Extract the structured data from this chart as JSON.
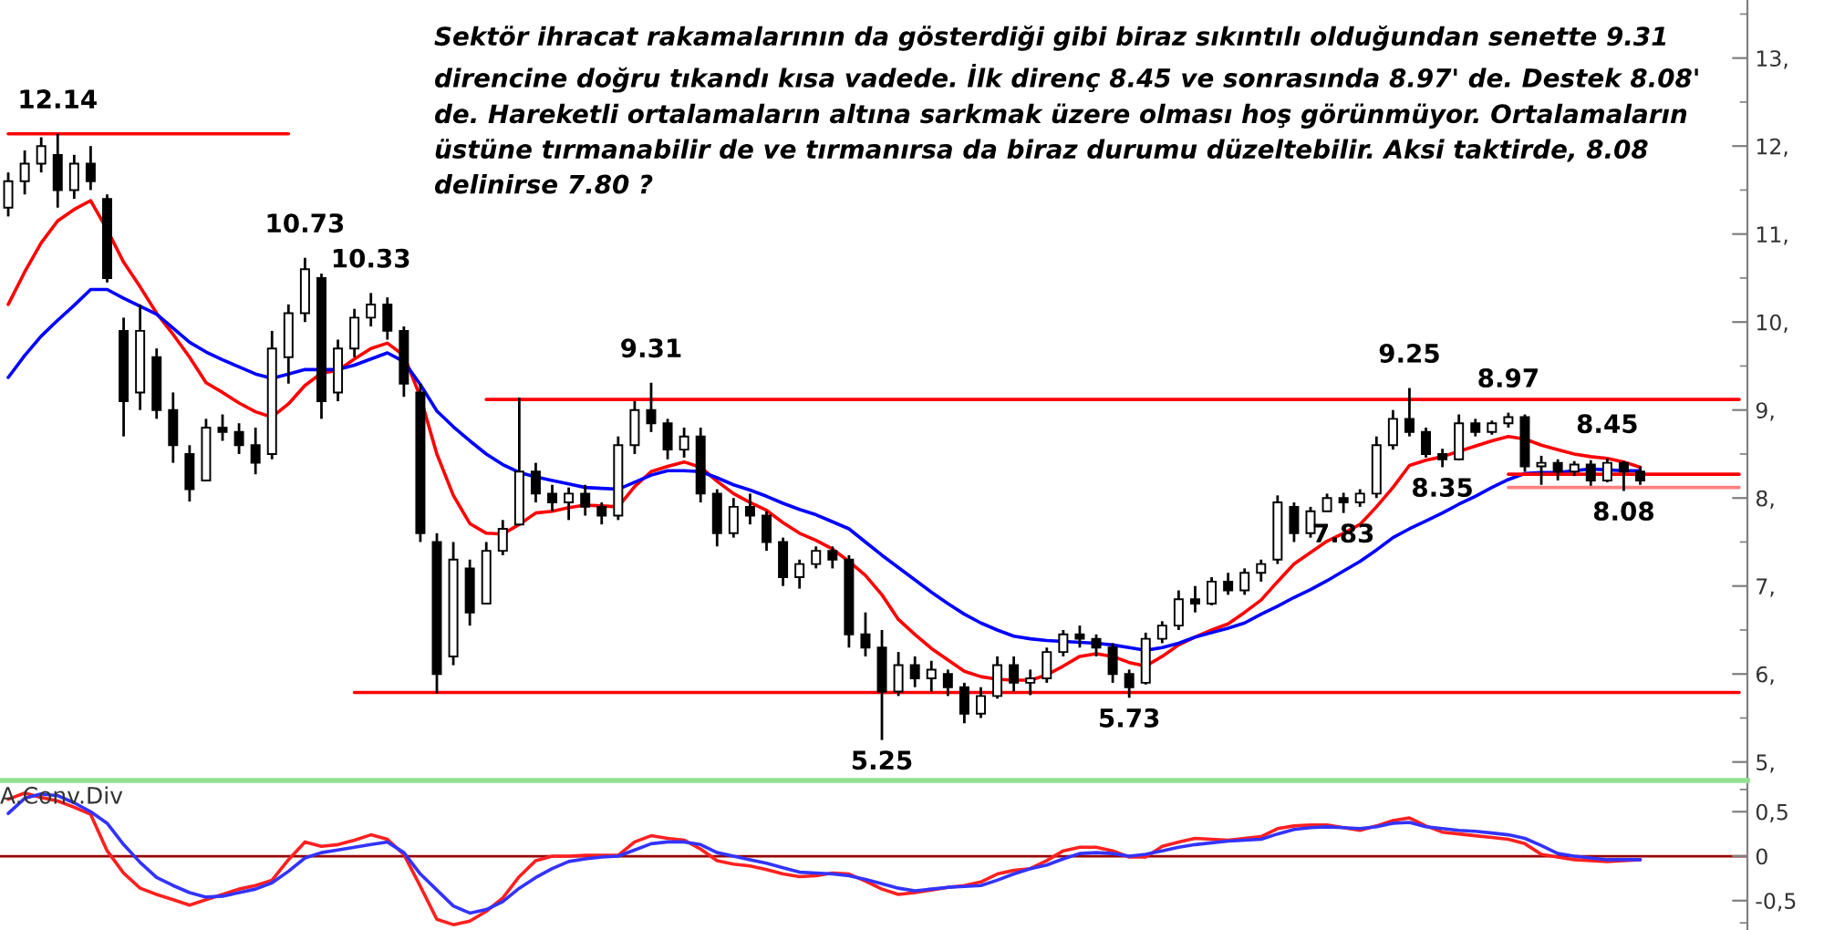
{
  "chart_data": [
    {
      "type": "candlestick",
      "categories": [
        null,
        null,
        null,
        null,
        null,
        null,
        null,
        null,
        null,
        null,
        null,
        null,
        null,
        null,
        null,
        null,
        null,
        null,
        null,
        null,
        null,
        null,
        null,
        null,
        null,
        null,
        null,
        null,
        null,
        null,
        null,
        null,
        null,
        null,
        null,
        null,
        null,
        null,
        null,
        null,
        null,
        null,
        null,
        null,
        null,
        null,
        null,
        null,
        null,
        null,
        null,
        null,
        null,
        null,
        null,
        null,
        null,
        null,
        null,
        null,
        null,
        null,
        null,
        null,
        null,
        null,
        null,
        null,
        null,
        null,
        null,
        null,
        null,
        null,
        null,
        null,
        null,
        null,
        null,
        null,
        null,
        null,
        null,
        null,
        null,
        null,
        null,
        null,
        null,
        null,
        null,
        null,
        null,
        null,
        null,
        null,
        null,
        null,
        null,
        null,
        null,
        null,
        null,
        null,
        null,
        null
      ],
      "ohlc": [
        [
          11.3,
          11.7,
          11.2,
          11.6
        ],
        [
          11.6,
          11.95,
          11.45,
          11.8
        ],
        [
          11.8,
          12.1,
          11.7,
          12.0
        ],
        [
          11.9,
          12.14,
          11.3,
          11.5
        ],
        [
          11.5,
          11.9,
          11.4,
          11.8
        ],
        [
          11.8,
          12.0,
          11.5,
          11.6
        ],
        [
          11.4,
          11.45,
          10.45,
          10.5
        ],
        [
          9.9,
          10.05,
          8.7,
          9.1
        ],
        [
          9.2,
          10.2,
          9.0,
          9.9
        ],
        [
          9.6,
          9.7,
          8.9,
          9.0
        ],
        [
          9.0,
          9.2,
          8.4,
          8.6
        ],
        [
          8.5,
          8.6,
          7.96,
          8.1
        ],
        [
          8.2,
          8.9,
          8.2,
          8.8
        ],
        [
          8.8,
          8.95,
          8.65,
          8.75
        ],
        [
          8.75,
          8.85,
          8.5,
          8.6
        ],
        [
          8.6,
          8.8,
          8.27,
          8.4
        ],
        [
          8.5,
          9.9,
          8.44,
          9.7
        ],
        [
          9.6,
          10.2,
          9.3,
          10.1
        ],
        [
          10.1,
          10.73,
          10.0,
          10.6
        ],
        [
          10.5,
          10.55,
          8.9,
          9.1
        ],
        [
          9.2,
          9.8,
          9.1,
          9.7
        ],
        [
          9.7,
          10.15,
          9.6,
          10.05
        ],
        [
          10.05,
          10.33,
          9.95,
          10.2
        ],
        [
          10.2,
          10.28,
          9.8,
          9.9
        ],
        [
          9.9,
          9.95,
          9.15,
          9.3
        ],
        [
          9.2,
          9.3,
          7.5,
          7.6
        ],
        [
          7.5,
          7.6,
          5.78,
          6.0
        ],
        [
          6.2,
          7.5,
          6.1,
          7.3
        ],
        [
          7.2,
          7.3,
          6.55,
          6.7
        ],
        [
          6.8,
          7.5,
          6.8,
          7.4
        ],
        [
          7.4,
          7.75,
          7.35,
          7.65
        ],
        [
          7.7,
          9.14,
          7.7,
          8.3
        ],
        [
          8.3,
          8.4,
          7.95,
          8.05
        ],
        [
          8.05,
          8.15,
          7.85,
          7.95
        ],
        [
          7.95,
          8.12,
          7.75,
          8.05
        ],
        [
          8.05,
          8.15,
          7.8,
          7.9
        ],
        [
          7.9,
          7.95,
          7.7,
          7.8
        ],
        [
          7.8,
          8.7,
          7.75,
          8.6
        ],
        [
          8.6,
          9.1,
          8.5,
          9.0
        ],
        [
          9.0,
          9.31,
          8.75,
          8.85
        ],
        [
          8.85,
          8.9,
          8.44,
          8.55
        ],
        [
          8.55,
          8.8,
          8.46,
          8.7
        ],
        [
          8.7,
          8.8,
          7.95,
          8.05
        ],
        [
          8.05,
          8.1,
          7.45,
          7.6
        ],
        [
          7.6,
          8.0,
          7.55,
          7.9
        ],
        [
          7.9,
          8.05,
          7.7,
          7.8
        ],
        [
          7.8,
          7.85,
          7.4,
          7.5
        ],
        [
          7.5,
          7.55,
          7.0,
          7.1
        ],
        [
          7.1,
          7.3,
          6.97,
          7.25
        ],
        [
          7.25,
          7.45,
          7.2,
          7.4
        ],
        [
          7.4,
          7.45,
          7.2,
          7.3
        ],
        [
          7.3,
          7.35,
          6.3,
          6.45
        ],
        [
          6.45,
          6.7,
          6.2,
          6.3
        ],
        [
          6.3,
          6.5,
          5.25,
          5.8
        ],
        [
          5.8,
          6.25,
          5.75,
          6.1
        ],
        [
          6.1,
          6.2,
          5.85,
          5.95
        ],
        [
          5.95,
          6.15,
          5.8,
          6.05
        ],
        [
          6.0,
          6.05,
          5.75,
          5.85
        ],
        [
          5.85,
          5.9,
          5.44,
          5.55
        ],
        [
          5.55,
          5.85,
          5.5,
          5.75
        ],
        [
          5.75,
          6.2,
          5.72,
          6.1
        ],
        [
          6.1,
          6.2,
          5.8,
          5.9
        ],
        [
          5.9,
          6.05,
          5.76,
          5.95
        ],
        [
          5.95,
          6.3,
          5.9,
          6.25
        ],
        [
          6.25,
          6.5,
          6.2,
          6.45
        ],
        [
          6.45,
          6.55,
          6.3,
          6.4
        ],
        [
          6.4,
          6.45,
          6.2,
          6.3
        ],
        [
          6.3,
          6.35,
          5.9,
          6.0
        ],
        [
          6.0,
          6.05,
          5.73,
          5.85
        ],
        [
          5.9,
          6.47,
          5.88,
          6.4
        ],
        [
          6.4,
          6.6,
          6.35,
          6.55
        ],
        [
          6.55,
          6.95,
          6.5,
          6.85
        ],
        [
          6.85,
          7.0,
          6.7,
          6.8
        ],
        [
          6.8,
          7.1,
          6.78,
          7.05
        ],
        [
          7.05,
          7.15,
          6.9,
          6.95
        ],
        [
          6.95,
          7.2,
          6.9,
          7.15
        ],
        [
          7.15,
          7.3,
          7.05,
          7.25
        ],
        [
          7.3,
          8.03,
          7.25,
          7.95
        ],
        [
          7.9,
          7.95,
          7.5,
          7.6
        ],
        [
          7.6,
          7.9,
          7.55,
          7.85
        ],
        [
          7.85,
          8.05,
          7.85,
          8.0
        ],
        [
          8.0,
          8.06,
          7.83,
          7.95
        ],
        [
          7.95,
          8.1,
          7.9,
          8.05
        ],
        [
          8.05,
          8.7,
          8.0,
          8.6
        ],
        [
          8.6,
          9.0,
          8.55,
          8.9
        ],
        [
          8.9,
          9.25,
          8.7,
          8.75
        ],
        [
          8.75,
          8.8,
          8.46,
          8.5
        ],
        [
          8.5,
          8.56,
          8.35,
          8.44
        ],
        [
          8.44,
          8.95,
          8.43,
          8.85
        ],
        [
          8.85,
          8.9,
          8.7,
          8.75
        ],
        [
          8.75,
          8.88,
          8.72,
          8.85
        ],
        [
          8.85,
          8.97,
          8.8,
          8.92
        ],
        [
          8.92,
          8.95,
          8.3,
          8.36
        ],
        [
          8.36,
          8.48,
          8.15,
          8.4
        ],
        [
          8.4,
          8.44,
          8.2,
          8.3
        ],
        [
          8.3,
          8.42,
          8.25,
          8.38
        ],
        [
          8.38,
          8.43,
          8.14,
          8.2
        ],
        [
          8.2,
          8.45,
          8.18,
          8.4
        ],
        [
          8.4,
          8.42,
          8.08,
          8.3
        ],
        [
          8.3,
          8.36,
          8.15,
          8.2
        ],
        null,
        null,
        null,
        null,
        null,
        null
      ],
      "series": [
        {
          "type": "line",
          "color": "#ff0000",
          "values": [
            10.2,
            10.57,
            10.9,
            11.15,
            11.28,
            11.38,
            11.05,
            10.68,
            10.4,
            10.1,
            9.86,
            9.6,
            9.31,
            9.2,
            9.08,
            8.98,
            8.92,
            9.07,
            9.28,
            9.42,
            9.45,
            9.58,
            9.7,
            9.76,
            9.62,
            9.15,
            8.5,
            8.03,
            7.71,
            7.6,
            7.59,
            7.7,
            7.83,
            7.85,
            7.89,
            7.92,
            7.91,
            7.9,
            8.13,
            8.3,
            8.36,
            8.41,
            8.35,
            8.19,
            8.05,
            7.95,
            7.86,
            7.72,
            7.6,
            7.52,
            7.42,
            7.28,
            7.12,
            6.9,
            6.62,
            6.45,
            6.29,
            6.16,
            6.03,
            5.97,
            5.94,
            5.93,
            5.93,
            5.99,
            6.09,
            6.2,
            6.23,
            6.2,
            6.13,
            6.09,
            6.2,
            6.33,
            6.42,
            6.5,
            6.57,
            6.7,
            6.84,
            7.05,
            7.25,
            7.38,
            7.51,
            7.6,
            7.7,
            7.9,
            8.12,
            8.37,
            8.43,
            8.47,
            8.53,
            8.59,
            8.65,
            8.7,
            8.67,
            8.6,
            8.55,
            8.5,
            8.47,
            8.45,
            8.41,
            8.35,
            null,
            null,
            null,
            null,
            null,
            null
          ]
        },
        {
          "type": "line",
          "color": "#0000ff",
          "values": [
            9.37,
            9.62,
            9.84,
            10.02,
            10.19,
            10.37,
            10.37,
            10.27,
            10.18,
            10.09,
            9.93,
            9.77,
            9.66,
            9.57,
            9.49,
            9.41,
            9.36,
            9.41,
            9.46,
            9.46,
            9.46,
            9.51,
            9.58,
            9.65,
            9.55,
            9.29,
            8.99,
            8.81,
            8.65,
            8.5,
            8.38,
            8.29,
            8.24,
            8.2,
            8.16,
            8.12,
            8.11,
            8.1,
            8.18,
            8.26,
            8.31,
            8.31,
            8.3,
            8.23,
            8.15,
            8.09,
            8.02,
            7.94,
            7.87,
            7.81,
            7.73,
            7.65,
            7.5,
            7.35,
            7.21,
            7.07,
            6.93,
            6.8,
            6.68,
            6.58,
            6.5,
            6.43,
            6.4,
            6.38,
            6.37,
            6.36,
            6.35,
            6.33,
            6.3,
            6.27,
            6.3,
            6.35,
            6.42,
            6.47,
            6.52,
            6.58,
            6.68,
            6.77,
            6.87,
            6.96,
            7.06,
            7.17,
            7.28,
            7.41,
            7.55,
            7.65,
            7.74,
            7.83,
            7.93,
            8.02,
            8.12,
            8.21,
            8.28,
            8.29,
            8.29,
            8.31,
            8.33,
            8.32,
            8.31,
            8.31,
            null,
            null,
            null,
            null,
            null,
            null
          ]
        },
        {
          "type": "line",
          "color": "#ff0000",
          "values": [
            12.14,
            12.14,
            12.14,
            12.14,
            12.14,
            12.14,
            12.14,
            12.14,
            12.14,
            12.14,
            12.14,
            12.14,
            12.14,
            12.14,
            12.14,
            12.14,
            12.14,
            12.14,
            null,
            null,
            null,
            null,
            null,
            null,
            null,
            null,
            null,
            null,
            null,
            null,
            null,
            null,
            null,
            null,
            null,
            null,
            null,
            null,
            null,
            null,
            null,
            null,
            null,
            null,
            null,
            null,
            null,
            null,
            null,
            null,
            null,
            null,
            null,
            null,
            null,
            null,
            null,
            null,
            null,
            null,
            null,
            null,
            null,
            null,
            null,
            null,
            null,
            null,
            null,
            null,
            null,
            null,
            null,
            null,
            null,
            null,
            null,
            null,
            null,
            null,
            null,
            null,
            null,
            null,
            null,
            null,
            null,
            null,
            null,
            null,
            null,
            null,
            null,
            null,
            null,
            null,
            null,
            null,
            null,
            null,
            null,
            null,
            null,
            null,
            null,
            null
          ]
        },
        {
          "type": "line",
          "color": "#ff0000",
          "values": [
            null,
            null,
            null,
            null,
            null,
            null,
            null,
            null,
            null,
            null,
            null,
            null,
            null,
            null,
            null,
            null,
            null,
            null,
            null,
            null,
            null,
            null,
            null,
            null,
            null,
            null,
            null,
            null,
            null,
            9.12,
            9.12,
            9.12,
            9.12,
            9.12,
            9.12,
            9.12,
            9.12,
            9.12,
            9.12,
            9.12,
            9.12,
            9.12,
            9.12,
            9.12,
            9.12,
            9.12,
            9.12,
            9.12,
            9.12,
            9.12,
            9.12,
            9.12,
            9.12,
            9.12,
            9.12,
            9.12,
            9.12,
            9.12,
            9.12,
            9.12,
            9.12,
            9.12,
            9.12,
            9.12,
            9.12,
            9.12,
            9.12,
            9.12,
            9.12,
            9.12,
            9.12,
            9.12,
            9.12,
            9.12,
            9.12,
            9.12,
            9.12,
            9.12,
            9.12,
            9.12,
            9.12,
            9.12,
            9.12,
            9.12,
            9.12,
            9.12,
            9.12,
            9.12,
            9.12,
            9.12,
            9.12,
            9.12,
            9.12,
            9.12,
            9.12,
            9.12,
            9.12,
            9.12,
            9.12,
            9.12,
            9.12,
            9.12,
            9.12,
            9.12,
            9.12,
            9.12
          ]
        },
        {
          "type": "line",
          "color": "#ff0000",
          "values": [
            null,
            null,
            null,
            null,
            null,
            null,
            null,
            null,
            null,
            null,
            null,
            null,
            null,
            null,
            null,
            null,
            null,
            null,
            null,
            null,
            null,
            5.79,
            5.79,
            5.79,
            5.79,
            5.79,
            5.79,
            5.79,
            5.79,
            5.79,
            5.79,
            5.79,
            5.79,
            5.79,
            5.79,
            5.79,
            5.79,
            5.79,
            5.79,
            5.79,
            5.79,
            5.79,
            5.79,
            5.79,
            5.79,
            5.79,
            5.79,
            5.79,
            5.79,
            5.79,
            5.79,
            5.79,
            5.79,
            5.79,
            5.79,
            5.79,
            5.79,
            5.79,
            5.79,
            5.79,
            5.79,
            5.79,
            5.79,
            5.79,
            5.79,
            5.79,
            5.79,
            5.79,
            5.79,
            5.79,
            5.79,
            5.79,
            5.79,
            5.79,
            5.79,
            5.79,
            5.79,
            5.79,
            5.79,
            5.79,
            5.79,
            5.79,
            5.79,
            5.79,
            5.79,
            5.79,
            5.79,
            5.79,
            5.79,
            5.79,
            5.79,
            5.79,
            5.79,
            5.79,
            5.79,
            5.79,
            5.79,
            5.79,
            5.79,
            5.79,
            5.79,
            5.79,
            5.79,
            5.79,
            5.79,
            5.79
          ]
        },
        {
          "type": "line",
          "color": "#ff0000",
          "values": [
            null,
            null,
            null,
            null,
            null,
            null,
            null,
            null,
            null,
            null,
            null,
            null,
            null,
            null,
            null,
            null,
            null,
            null,
            null,
            null,
            null,
            null,
            null,
            null,
            null,
            null,
            null,
            null,
            null,
            null,
            null,
            null,
            null,
            null,
            null,
            null,
            null,
            null,
            null,
            null,
            null,
            null,
            null,
            null,
            null,
            null,
            null,
            null,
            null,
            null,
            null,
            null,
            null,
            null,
            null,
            null,
            null,
            null,
            null,
            null,
            null,
            null,
            null,
            null,
            null,
            null,
            null,
            null,
            null,
            null,
            null,
            null,
            null,
            null,
            null,
            null,
            null,
            null,
            null,
            null,
            null,
            null,
            null,
            null,
            null,
            null,
            null,
            null,
            null,
            null,
            null,
            8.27,
            8.27,
            8.27,
            8.27,
            8.27,
            8.27,
            8.27,
            8.27,
            8.27,
            8.27,
            8.27,
            8.27,
            8.27,
            8.27,
            8.27
          ]
        },
        {
          "type": "line",
          "color": "#ff8080",
          "values": [
            null,
            null,
            null,
            null,
            null,
            null,
            null,
            null,
            null,
            null,
            null,
            null,
            null,
            null,
            null,
            null,
            null,
            null,
            null,
            null,
            null,
            null,
            null,
            null,
            null,
            null,
            null,
            null,
            null,
            null,
            null,
            null,
            null,
            null,
            null,
            null,
            null,
            null,
            null,
            null,
            null,
            null,
            null,
            null,
            null,
            null,
            null,
            null,
            null,
            null,
            null,
            null,
            null,
            null,
            null,
            null,
            null,
            null,
            null,
            null,
            null,
            null,
            null,
            null,
            null,
            null,
            null,
            null,
            null,
            null,
            null,
            null,
            null,
            null,
            null,
            null,
            null,
            null,
            null,
            null,
            null,
            null,
            null,
            null,
            null,
            null,
            null,
            null,
            null,
            null,
            null,
            8.12,
            8.12,
            8.12,
            8.12,
            8.12,
            8.12,
            8.12,
            8.12,
            8.12,
            8.12,
            8.12,
            8.12,
            8.12,
            8.12,
            8.12
          ]
        }
      ],
      "ylim": [
        4.79,
        13.66
      ],
      "yticks": [
        {
          "value": 5,
          "label": "5,"
        },
        {
          "value": 5.5,
          "label": null
        },
        {
          "value": 6,
          "label": "6,"
        },
        {
          "value": 6.5,
          "label": null
        },
        {
          "value": 7,
          "label": "7,"
        },
        {
          "value": 7.5,
          "label": null
        },
        {
          "value": 8,
          "label": "8,"
        },
        {
          "value": 8.5,
          "label": null
        },
        {
          "value": 9,
          "label": "9,"
        },
        {
          "value": 9.5,
          "label": null
        },
        {
          "value": 10,
          "label": "10,"
        },
        {
          "value": 10.5,
          "label": null
        },
        {
          "value": 11,
          "label": "11,"
        },
        {
          "value": 11.5,
          "label": null
        },
        {
          "value": 12,
          "label": "12,"
        },
        {
          "value": 12.5,
          "label": null
        },
        {
          "value": 13,
          "label": "13,"
        },
        {
          "value": 13.5,
          "label": null
        }
      ],
      "tick_labels": "y",
      "annotations": [
        "Sektör ihracat rakamalarının da gösterdiği gibi biraz sıkıntılı olduğundan senette 9.31 direncine doğru tıkandı kısa vadede. İlk direnç 8.45 ve sonrasında 8.97' de. Destek 8.08' de. Hareketli ortalamaların altına sarkmak üzere olması hoş görünmüyor. Ortalamaların üstüne tırmanabilir de ve tırmanırsa da biraz durumu düzeltebilir. Aksi taktirde, 8.08 delinirse 7.80 ?",
        {
          "text": "12.14",
          "y": 12.14
        },
        {
          "text": "10.73",
          "y": 10.73
        },
        {
          "text": "10.33",
          "y": 10.33
        },
        {
          "text": "9.31",
          "y": 9.31
        },
        {
          "text": "5.25",
          "y": 5.25
        },
        {
          "text": "5.73",
          "y": 5.73
        },
        {
          "text": "7.83",
          "y": 7.83
        },
        {
          "text": "9.25",
          "y": 9.25
        },
        {
          "text": "8.35",
          "y": 8.35
        },
        {
          "text": "8.97",
          "y": 8.97
        },
        {
          "text": "8.45",
          "y": 8.45
        },
        {
          "text": "8.08",
          "y": 8.08
        }
      ]
    },
    {
      "type": "line",
      "title": "A.Conv.Div",
      "categories": [
        null,
        null,
        null,
        null,
        null,
        null,
        null,
        null,
        null,
        null,
        null,
        null,
        null,
        null,
        null,
        null,
        null,
        null,
        null,
        null,
        null,
        null,
        null,
        null,
        null,
        null,
        null,
        null,
        null,
        null,
        null,
        null,
        null,
        null,
        null,
        null,
        null,
        null,
        null,
        null,
        null,
        null,
        null,
        null,
        null,
        null,
        null,
        null,
        null,
        null,
        null,
        null,
        null,
        null,
        null,
        null,
        null,
        null,
        null,
        null,
        null,
        null,
        null,
        null,
        null,
        null,
        null,
        null,
        null,
        null,
        null,
        null,
        null,
        null,
        null,
        null,
        null,
        null,
        null,
        null,
        null,
        null,
        null,
        null,
        null,
        null,
        null,
        null,
        null,
        null,
        null,
        null,
        null,
        null,
        null,
        null,
        null,
        null,
        null,
        null,
        null,
        null,
        null,
        null,
        null,
        null
      ],
      "series": [
        {
          "color": "#ff2020",
          "values": [
            0.64,
            0.71,
            0.66,
            0.62,
            0.55,
            0.47,
            0.06,
            -0.19,
            -0.36,
            -0.43,
            -0.49,
            -0.55,
            -0.49,
            -0.43,
            -0.37,
            -0.33,
            -0.27,
            -0.04,
            0.16,
            0.11,
            0.13,
            0.18,
            0.24,
            0.19,
            0.02,
            -0.34,
            -0.71,
            -0.77,
            -0.73,
            -0.62,
            -0.47,
            -0.23,
            -0.05,
            0.0,
            0.0,
            0.01,
            0.01,
            0.01,
            0.16,
            0.23,
            0.2,
            0.18,
            0.08,
            -0.05,
            -0.09,
            -0.11,
            -0.15,
            -0.2,
            -0.23,
            -0.22,
            -0.19,
            -0.2,
            -0.28,
            -0.37,
            -0.43,
            -0.41,
            -0.38,
            -0.35,
            -0.33,
            -0.29,
            -0.2,
            -0.16,
            -0.14,
            -0.05,
            0.06,
            0.1,
            0.1,
            0.06,
            -0.01,
            -0.01,
            0.11,
            0.16,
            0.2,
            0.19,
            0.18,
            0.2,
            0.22,
            0.31,
            0.34,
            0.35,
            0.35,
            0.32,
            0.29,
            0.34,
            0.4,
            0.43,
            0.34,
            0.27,
            0.25,
            0.23,
            0.21,
            0.19,
            0.14,
            0.02,
            -0.01,
            -0.04,
            -0.05,
            -0.06,
            -0.05,
            -0.04,
            null,
            null,
            null,
            null,
            null,
            null
          ]
        },
        {
          "color": "#3333ff",
          "values": [
            0.48,
            0.65,
            0.7,
            0.68,
            0.6,
            0.5,
            0.37,
            0.13,
            -0.07,
            -0.24,
            -0.33,
            -0.41,
            -0.46,
            -0.45,
            -0.41,
            -0.37,
            -0.3,
            -0.17,
            -0.02,
            0.04,
            0.07,
            0.1,
            0.13,
            0.16,
            0.04,
            -0.2,
            -0.38,
            -0.56,
            -0.64,
            -0.6,
            -0.51,
            -0.36,
            -0.24,
            -0.14,
            -0.06,
            -0.03,
            -0.01,
            0.0,
            0.07,
            0.14,
            0.16,
            0.16,
            0.13,
            0.04,
            0.0,
            -0.04,
            -0.08,
            -0.13,
            -0.18,
            -0.19,
            -0.2,
            -0.22,
            -0.26,
            -0.31,
            -0.36,
            -0.39,
            -0.37,
            -0.35,
            -0.34,
            -0.33,
            -0.27,
            -0.2,
            -0.14,
            -0.1,
            -0.03,
            0.03,
            0.04,
            0.03,
            0.0,
            0.02,
            0.06,
            0.1,
            0.13,
            0.15,
            0.17,
            0.18,
            0.19,
            0.25,
            0.3,
            0.32,
            0.33,
            0.32,
            0.31,
            0.33,
            0.37,
            0.38,
            0.33,
            0.31,
            0.29,
            0.28,
            0.26,
            0.24,
            0.2,
            0.12,
            0.03,
            0.0,
            -0.02,
            -0.04,
            -0.04,
            -0.04,
            null,
            null,
            null,
            null,
            null,
            null
          ]
        }
      ],
      "ref_lines": [
        {
          "axis": "y",
          "value": 0,
          "color": "#990000"
        }
      ],
      "ylim": [
        -0.83,
        0.81
      ],
      "yticks": [
        {
          "value": 0.75,
          "label": null
        },
        {
          "value": 0.5,
          "label": "0,5"
        },
        0,
        {
          "value": -0.5,
          "label": "-0,5"
        },
        {
          "value": -0.75,
          "label": null
        }
      ],
      "tick_labels": "y"
    }
  ]
}
